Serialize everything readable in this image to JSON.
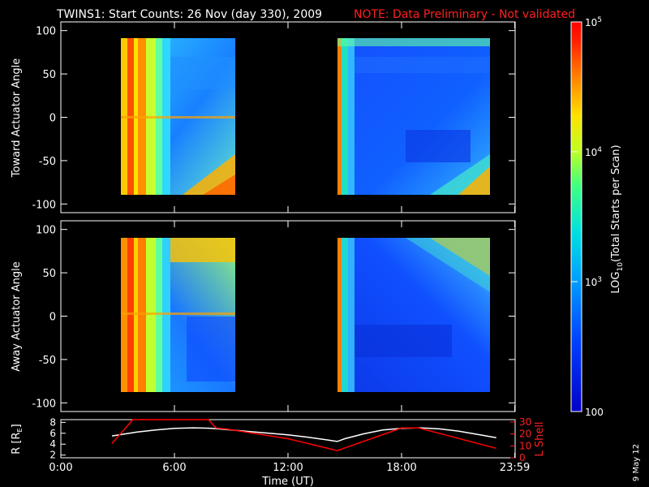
{
  "header": {
    "title": "TWINS1: Start Counts: 26 Nov (day 330), 2009",
    "note": "NOTE: Data Preliminary - Not validated",
    "note_color": "#ff2020"
  },
  "side_date": "9 May 12",
  "colorbar": {
    "label": "LOG10(Total Starts per Scan)",
    "scale": "log",
    "range": [
      100,
      100000
    ],
    "tick_labels": [
      "10^5",
      "10^4",
      "10^3",
      "100"
    ],
    "tick_values": [
      100000,
      10000,
      1000,
      100
    ],
    "colors": [
      "#0000c8",
      "#0040ff",
      "#00a0ff",
      "#00e0e0",
      "#40ff80",
      "#c0ff20",
      "#ffe000",
      "#ff8000",
      "#ff2000",
      "#ff0000"
    ]
  },
  "chart_data": [
    {
      "type": "heatmap",
      "ylabel": "Toward Actuator Angle",
      "ylim": [
        -110,
        110
      ],
      "xlim": [
        0,
        24
      ],
      "yticks": [
        "100",
        "50",
        "0",
        "-50",
        "-100"
      ],
      "ytick_values": [
        100,
        50,
        0,
        -50,
        -100
      ],
      "data_blocks": [
        {
          "t_start": 2.7,
          "t_end": 9.1,
          "angle_range": [
            -90,
            90
          ],
          "dominant_level": "1e3-1e4"
        },
        {
          "t_start": 14.6,
          "t_end": 23.0,
          "angle_range": [
            -90,
            90
          ],
          "dominant_level": "1e2-1e3"
        }
      ]
    },
    {
      "type": "heatmap",
      "ylabel": "Away Actuator Angle",
      "ylim": [
        -110,
        110
      ],
      "xlim": [
        0,
        24
      ],
      "yticks": [
        "100",
        "50",
        "0",
        "-50",
        "-100"
      ],
      "ytick_values": [
        100,
        50,
        0,
        -50,
        -100
      ],
      "data_blocks": [
        {
          "t_start": 2.7,
          "t_end": 9.1,
          "angle_range": [
            -90,
            90
          ],
          "dominant_level": "1e3-1e4"
        },
        {
          "t_start": 14.6,
          "t_end": 23.0,
          "angle_range": [
            -90,
            90
          ],
          "dominant_level": "1e2-1e3"
        }
      ]
    },
    {
      "type": "line",
      "ylabel_left": "R [RE]",
      "ylabel_right": "L Shell",
      "xlabel": "Time (UT)",
      "xticks": [
        "0:00",
        "6:00",
        "12:00",
        "18:00",
        "23:59"
      ],
      "xtick_values": [
        0,
        6,
        12,
        18,
        23.98
      ],
      "yticks_left": [
        "8",
        "6",
        "4",
        "2"
      ],
      "ytick_values_left": [
        8,
        6,
        4,
        2
      ],
      "yticks_right": [
        "30",
        "20",
        "10",
        "0"
      ],
      "ytick_values_right": [
        30,
        20,
        10,
        0
      ],
      "ylim_left": [
        1.5,
        8.5
      ],
      "ylim_right": [
        0,
        32
      ],
      "series": [
        {
          "name": "R",
          "color": "#ffffff",
          "x": [
            2.7,
            4,
            5,
            6,
            7,
            8,
            9,
            10,
            11,
            12,
            13,
            14,
            14.6,
            15,
            16,
            17,
            18,
            19,
            20,
            21,
            22,
            23
          ],
          "y": [
            5.5,
            6.2,
            6.6,
            6.9,
            7.0,
            6.9,
            6.6,
            6.3,
            6.0,
            5.7,
            5.3,
            4.8,
            4.5,
            5.0,
            5.9,
            6.6,
            6.9,
            7.0,
            6.8,
            6.4,
            5.8,
            5.2
          ]
        },
        {
          "name": "L Shell",
          "color": "#ff0000",
          "x": [
            2.7,
            3.8,
            3.81,
            7.8,
            8.2,
            8.8,
            12,
            14.6,
            18,
            18.9,
            23
          ],
          "y": [
            12,
            32,
            32,
            32,
            25,
            24,
            16,
            6,
            25,
            25,
            8
          ]
        }
      ]
    }
  ]
}
